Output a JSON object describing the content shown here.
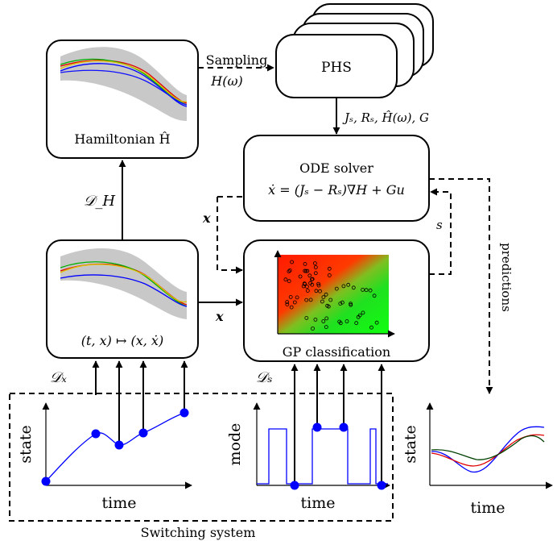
{
  "blocks": {
    "phs": "PHS",
    "hamiltonian": "Hamiltonian Ĥ",
    "ode_title": "ODE solver",
    "ode_eq": "ẋ = (Jₛ − Rₛ)∇H + Gu",
    "regression": "(t, x) ↦ (x, ẋ)",
    "gp_class": "GP classification"
  },
  "edges": {
    "sampling": "Sampling",
    "h_omega": "H(ω)",
    "phs_params": "Jₛ, Rₛ, Ĥ(ω), G",
    "d_h": "𝒟_H",
    "x_feedback": "x",
    "x_forward": "x",
    "s_feedback": "s",
    "predictions": "predictions",
    "d_x": "𝒟ₓ",
    "d_s": "𝒟ₛ"
  },
  "plots": {
    "state_ylabel": "state",
    "state_xlabel": "time",
    "mode_ylabel": "mode",
    "mode_xlabel": "time",
    "pred_ylabel": "state",
    "pred_xlabel": "time"
  },
  "system_label": "Switching system",
  "colors": {
    "sample_blue": "#0000ff",
    "gp_red": "#ff2000",
    "gp_green": "#10e010",
    "uncertainty_gray": "#c8c8c8"
  }
}
